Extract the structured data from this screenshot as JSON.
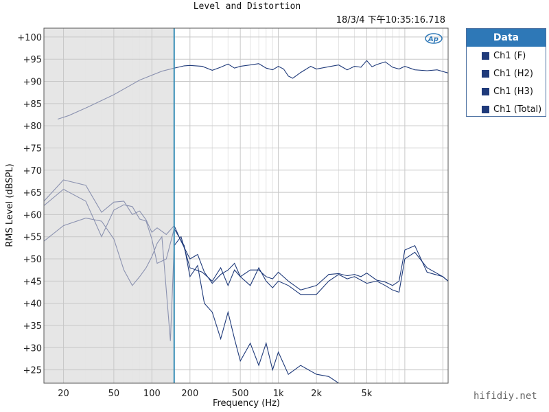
{
  "chart_data": {
    "type": "line",
    "title": "Level and Distortion",
    "timestamp": "18/3/4 下午10:35:16.718",
    "xlabel": "Frequency (Hz)",
    "ylabel": "RMS Level (dBSPL)",
    "x_scale": "log",
    "xlim": [
      14,
      22000
    ],
    "ylim": [
      22,
      102
    ],
    "x_ticks": [
      {
        "value": 20,
        "label": "20"
      },
      {
        "value": 50,
        "label": "50"
      },
      {
        "value": 100,
        "label": "100"
      },
      {
        "value": 200,
        "label": "200"
      },
      {
        "value": 500,
        "label": "500"
      },
      {
        "value": 1000,
        "label": "1k"
      },
      {
        "value": 2000,
        "label": "2k"
      },
      {
        "value": 5000,
        "label": "5k"
      }
    ],
    "y_ticks": [
      {
        "value": 100,
        "label": "+100"
      },
      {
        "value": 95,
        "label": "+95"
      },
      {
        "value": 90,
        "label": "+90"
      },
      {
        "value": 85,
        "label": "+85"
      },
      {
        "value": 80,
        "label": "+80"
      },
      {
        "value": 75,
        "label": "+75"
      },
      {
        "value": 70,
        "label": "+70"
      },
      {
        "value": 65,
        "label": "+65"
      },
      {
        "value": 60,
        "label": "+60"
      },
      {
        "value": 55,
        "label": "+55"
      },
      {
        "value": 50,
        "label": "+50"
      },
      {
        "value": 45,
        "label": "+45"
      },
      {
        "value": 40,
        "label": "+40"
      },
      {
        "value": 35,
        "label": "+35"
      },
      {
        "value": 30,
        "label": "+30"
      },
      {
        "value": 25,
        "label": "+25"
      }
    ],
    "grid": true,
    "shaded_region": {
      "x_from": 14,
      "x_to": 150
    },
    "cursor_x": 150,
    "legend": {
      "header": "Data",
      "position": "right",
      "items": [
        "Ch1 (F)",
        "Ch1 (H2)",
        "Ch1 (H3)",
        "Ch1 (Total)"
      ]
    },
    "colors": {
      "plot_border": "#555555",
      "grid_major": "#c8c8c8",
      "grid_minor": "#e4e4e4",
      "shade": "#e6e6e6",
      "cursor": "#3a8fb8",
      "trace": "#1f3a7a",
      "trace_shaded": "#8b92b0",
      "legend_header": "#2e78b7"
    },
    "series": [
      {
        "name": "Ch1 (F)",
        "x": [
          18,
          22,
          30,
          50,
          80,
          120,
          150,
          180,
          200,
          250,
          300,
          350,
          400,
          450,
          500,
          600,
          700,
          800,
          900,
          1000,
          1100,
          1200,
          1300,
          1500,
          1800,
          2000,
          2500,
          3000,
          3500,
          4000,
          4500,
          5000,
          5500,
          6000,
          7000,
          8000,
          9000,
          10000,
          12000,
          15000,
          18000,
          22000
        ],
        "y": [
          81.5,
          82.3,
          84,
          87,
          90.3,
          92.3,
          93,
          93.5,
          93.6,
          93.4,
          92.5,
          93.2,
          93.9,
          93,
          93.4,
          93.7,
          94,
          93,
          92.6,
          93.4,
          92.8,
          91.2,
          90.7,
          92,
          93.4,
          92.8,
          93.3,
          93.7,
          92.6,
          93.4,
          93.2,
          94.7,
          93.3,
          93.8,
          94.4,
          93.2,
          92.8,
          93.4,
          92.6,
          92.4,
          92.6,
          91.9
        ]
      },
      {
        "name": "Ch1 (H2)",
        "x": [
          14,
          20,
          30,
          40,
          50,
          60,
          70,
          80,
          90,
          100,
          110,
          130,
          150,
          180,
          200,
          230,
          260,
          300,
          350,
          400,
          450,
          500,
          600,
          700,
          800,
          900,
          1000,
          1200,
          1500,
          2000,
          2500,
          3000
        ],
        "y": [
          62,
          65.7,
          63,
          55,
          61,
          62.2,
          61.8,
          59,
          58.5,
          54.5,
          49,
          50,
          56.8,
          53,
          46,
          48.5,
          40,
          38,
          32,
          38,
          32,
          27,
          31,
          26,
          31,
          25,
          29,
          24,
          26,
          24,
          23.5,
          22
        ]
      },
      {
        "name": "Ch1 (H3)",
        "x": [
          14,
          20,
          30,
          40,
          50,
          60,
          70,
          80,
          90,
          100,
          110,
          120,
          130,
          140,
          150,
          170,
          200,
          250,
          300,
          350,
          400,
          450,
          500,
          600,
          700,
          800,
          900,
          1000,
          1200,
          1500,
          2000,
          2500,
          3000,
          3500,
          4000,
          5000,
          6000,
          7000,
          8000,
          9000,
          10000,
          12000,
          15000,
          20000,
          22000
        ],
        "y": [
          54,
          57.5,
          59.2,
          58.5,
          54.5,
          47.5,
          44,
          46,
          48,
          50.5,
          53.5,
          55,
          43,
          31.5,
          53,
          55,
          48,
          47,
          45,
          48,
          44,
          47.5,
          46,
          44,
          48,
          45,
          43.5,
          45,
          44,
          42,
          42,
          45,
          46.5,
          45.5,
          46,
          44.5,
          45,
          44,
          43,
          42.5,
          50,
          51.5,
          48,
          46,
          45
        ]
      },
      {
        "name": "Ch1 (Total)",
        "x": [
          14,
          20,
          30,
          40,
          50,
          60,
          70,
          80,
          90,
          100,
          110,
          130,
          150,
          170,
          200,
          230,
          260,
          300,
          350,
          400,
          450,
          500,
          600,
          700,
          800,
          900,
          1000,
          1200,
          1500,
          2000,
          2500,
          3000,
          3500,
          4000,
          4500,
          5000,
          6000,
          7000,
          8000,
          9000,
          10000,
          12000,
          15000,
          20000,
          22000
        ],
        "y": [
          63,
          67.8,
          66.6,
          60.5,
          62.8,
          63,
          60,
          60.8,
          58.8,
          56,
          57,
          55.5,
          57.5,
          54,
          50,
          51,
          47,
          44.5,
          46.5,
          47.5,
          49,
          46,
          47.5,
          47.5,
          46,
          45.5,
          47,
          45,
          43,
          44,
          46.5,
          46.7,
          46.2,
          46.5,
          46,
          46.8,
          45.2,
          44.8,
          44,
          45,
          52,
          53,
          47,
          46,
          45
        ]
      }
    ]
  },
  "watermark": "hifidiy.net"
}
